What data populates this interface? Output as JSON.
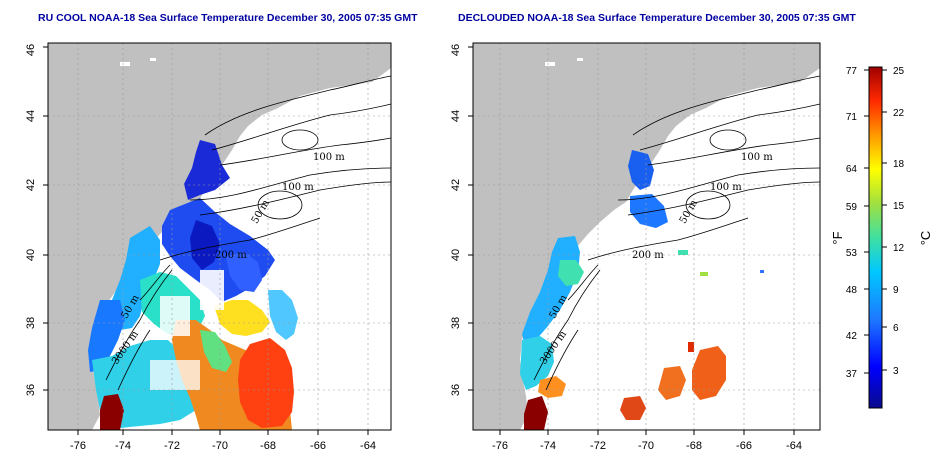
{
  "left_panel": {
    "title": "RU COOL NOAA-18 Sea Surface Temperature December 30, 2005 07:35 GMT"
  },
  "right_panel": {
    "title": "DECLOUDED NOAA-18 Sea Surface Temperature December 30, 2005 07:35 GMT"
  },
  "axes": {
    "lon_ticks": [
      "-76",
      "-74",
      "-72",
      "-70",
      "-68",
      "-66",
      "-64"
    ],
    "lat_ticks": [
      "36",
      "38",
      "40",
      "42",
      "44",
      "46"
    ]
  },
  "isobath_labels": {
    "left": [
      "100 m",
      "100 m",
      "50 m",
      "200 m",
      "50 m",
      "3000 m"
    ],
    "right": [
      "100 m",
      "100 m",
      "50 m",
      "200 m",
      "50 m",
      "3000 m"
    ]
  },
  "colorbar": {
    "fahrenheit_unit": "°F",
    "celsius_unit": "°C",
    "fahrenheit_ticks": [
      "77",
      "71",
      "64",
      "59",
      "53",
      "48",
      "42",
      "37"
    ],
    "celsius_ticks": [
      "25",
      "22",
      "18",
      "15",
      "12",
      "9",
      "6",
      "3"
    ],
    "colors": [
      "#0a0a8c",
      "#0000ff",
      "#1e78ff",
      "#00c8ff",
      "#40e0a0",
      "#a0e040",
      "#ffff00",
      "#ff9900",
      "#ff2a00",
      "#a00000"
    ]
  },
  "colors": {
    "land": "#c0c0c0",
    "title": "#0000a0",
    "grid": "#9a9a9a"
  }
}
